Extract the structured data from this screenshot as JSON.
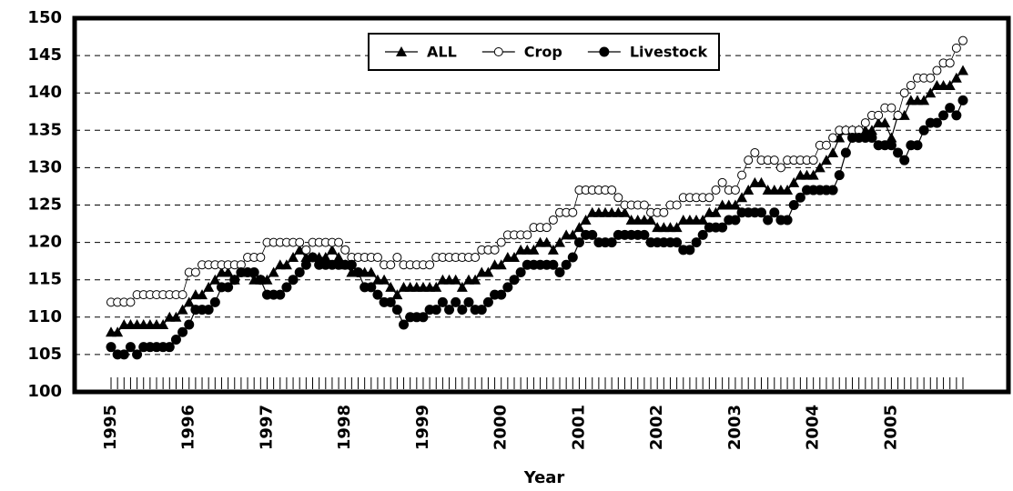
{
  "chart_data": {
    "type": "line",
    "x_label": "Year",
    "categories": [
      "1995",
      null,
      null,
      null,
      null,
      null,
      null,
      null,
      null,
      null,
      null,
      null,
      "1996",
      null,
      null,
      null,
      null,
      null,
      null,
      null,
      null,
      null,
      null,
      null,
      "1997",
      null,
      null,
      null,
      null,
      null,
      null,
      null,
      null,
      null,
      null,
      null,
      "1998",
      null,
      null,
      null,
      null,
      null,
      null,
      null,
      null,
      null,
      null,
      null,
      "1999",
      null,
      null,
      null,
      null,
      null,
      null,
      null,
      null,
      null,
      null,
      null,
      "2000",
      null,
      null,
      null,
      null,
      null,
      null,
      null,
      null,
      null,
      null,
      null,
      "2001",
      null,
      null,
      null,
      null,
      null,
      null,
      null,
      null,
      null,
      null,
      null,
      "2002",
      null,
      null,
      null,
      null,
      null,
      null,
      null,
      null,
      null,
      null,
      null,
      "2003",
      null,
      null,
      null,
      null,
      null,
      null,
      null,
      null,
      null,
      null,
      null,
      "2004",
      null,
      null,
      null,
      null,
      null,
      null,
      null,
      null,
      null,
      null,
      null,
      "2005",
      null,
      null,
      null,
      null,
      null,
      null,
      null,
      null,
      null,
      null,
      null
    ],
    "ylim": [
      100,
      150
    ],
    "yticks": [
      100,
      105,
      110,
      115,
      120,
      125,
      130,
      135,
      140,
      145,
      150
    ],
    "grid": true,
    "legend": "top",
    "series": [
      {
        "name": "ALL",
        "color": "#000000",
        "marker": "triangle",
        "values": [
          108,
          108,
          109,
          109,
          109,
          109,
          109,
          109,
          109,
          110,
          110,
          111,
          112,
          113,
          113,
          114,
          115,
          116,
          116,
          115,
          116,
          116,
          115,
          115,
          115,
          116,
          117,
          117,
          118,
          119,
          118,
          118,
          118,
          118,
          119,
          118,
          117,
          116,
          116,
          116,
          116,
          115,
          115,
          114,
          113,
          114,
          114,
          114,
          114,
          114,
          114,
          115,
          115,
          115,
          114,
          115,
          115,
          116,
          116,
          117,
          117,
          118,
          118,
          119,
          119,
          119,
          120,
          120,
          119,
          120,
          121,
          121,
          122,
          123,
          124,
          124,
          124,
          124,
          124,
          124,
          123,
          123,
          123,
          123,
          122,
          122,
          122,
          122,
          123,
          123,
          123,
          123,
          124,
          124,
          125,
          125,
          125,
          126,
          127,
          128,
          128,
          127,
          127,
          127,
          127,
          128,
          129,
          129,
          129,
          130,
          131,
          132,
          134,
          135,
          135,
          135,
          135,
          135,
          136,
          136,
          134,
          137,
          137,
          139,
          139,
          139,
          140,
          141,
          141,
          141,
          142,
          143
        ]
      },
      {
        "name": "Crop",
        "color": "#000000",
        "marker": "open-circle",
        "values": [
          112,
          112,
          112,
          112,
          113,
          113,
          113,
          113,
          113,
          113,
          113,
          113,
          116,
          116,
          117,
          117,
          117,
          117,
          117,
          117,
          117,
          118,
          118,
          118,
          120,
          120,
          120,
          120,
          120,
          120,
          119,
          120,
          120,
          120,
          120,
          120,
          119,
          118,
          118,
          118,
          118,
          118,
          117,
          117,
          118,
          117,
          117,
          117,
          117,
          117,
          118,
          118,
          118,
          118,
          118,
          118,
          118,
          119,
          119,
          119,
          120,
          121,
          121,
          121,
          121,
          122,
          122,
          122,
          123,
          124,
          124,
          124,
          127,
          127,
          127,
          127,
          127,
          127,
          126,
          125,
          125,
          125,
          125,
          124,
          124,
          124,
          125,
          125,
          126,
          126,
          126,
          126,
          126,
          127,
          128,
          127,
          127,
          129,
          131,
          132,
          131,
          131,
          131,
          130,
          131,
          131,
          131,
          131,
          131,
          133,
          133,
          134,
          135,
          135,
          135,
          135,
          136,
          137,
          137,
          138,
          138,
          137,
          140,
          141,
          142,
          142,
          142,
          143,
          144,
          144,
          146,
          147
        ]
      },
      {
        "name": "Livestock",
        "color": "#000000",
        "marker": "circle",
        "values": [
          106,
          105,
          105,
          106,
          105,
          106,
          106,
          106,
          106,
          106,
          107,
          108,
          109,
          111,
          111,
          111,
          112,
          114,
          114,
          115,
          116,
          116,
          116,
          115,
          113,
          113,
          113,
          114,
          115,
          116,
          117,
          118,
          117,
          117,
          117,
          117,
          117,
          117,
          116,
          114,
          114,
          113,
          112,
          112,
          111,
          109,
          110,
          110,
          110,
          111,
          111,
          112,
          111,
          112,
          111,
          112,
          111,
          111,
          112,
          113,
          113,
          114,
          115,
          116,
          117,
          117,
          117,
          117,
          117,
          116,
          117,
          118,
          120,
          121,
          121,
          120,
          120,
          120,
          121,
          121,
          121,
          121,
          121,
          120,
          120,
          120,
          120,
          120,
          119,
          119,
          120,
          121,
          122,
          122,
          122,
          123,
          123,
          124,
          124,
          124,
          124,
          123,
          124,
          123,
          123,
          125,
          126,
          127,
          127,
          127,
          127,
          127,
          129,
          132,
          134,
          134,
          134,
          134,
          133,
          133,
          133,
          132,
          131,
          133,
          133,
          135,
          136,
          136,
          137,
          138,
          137,
          139
        ]
      }
    ]
  }
}
